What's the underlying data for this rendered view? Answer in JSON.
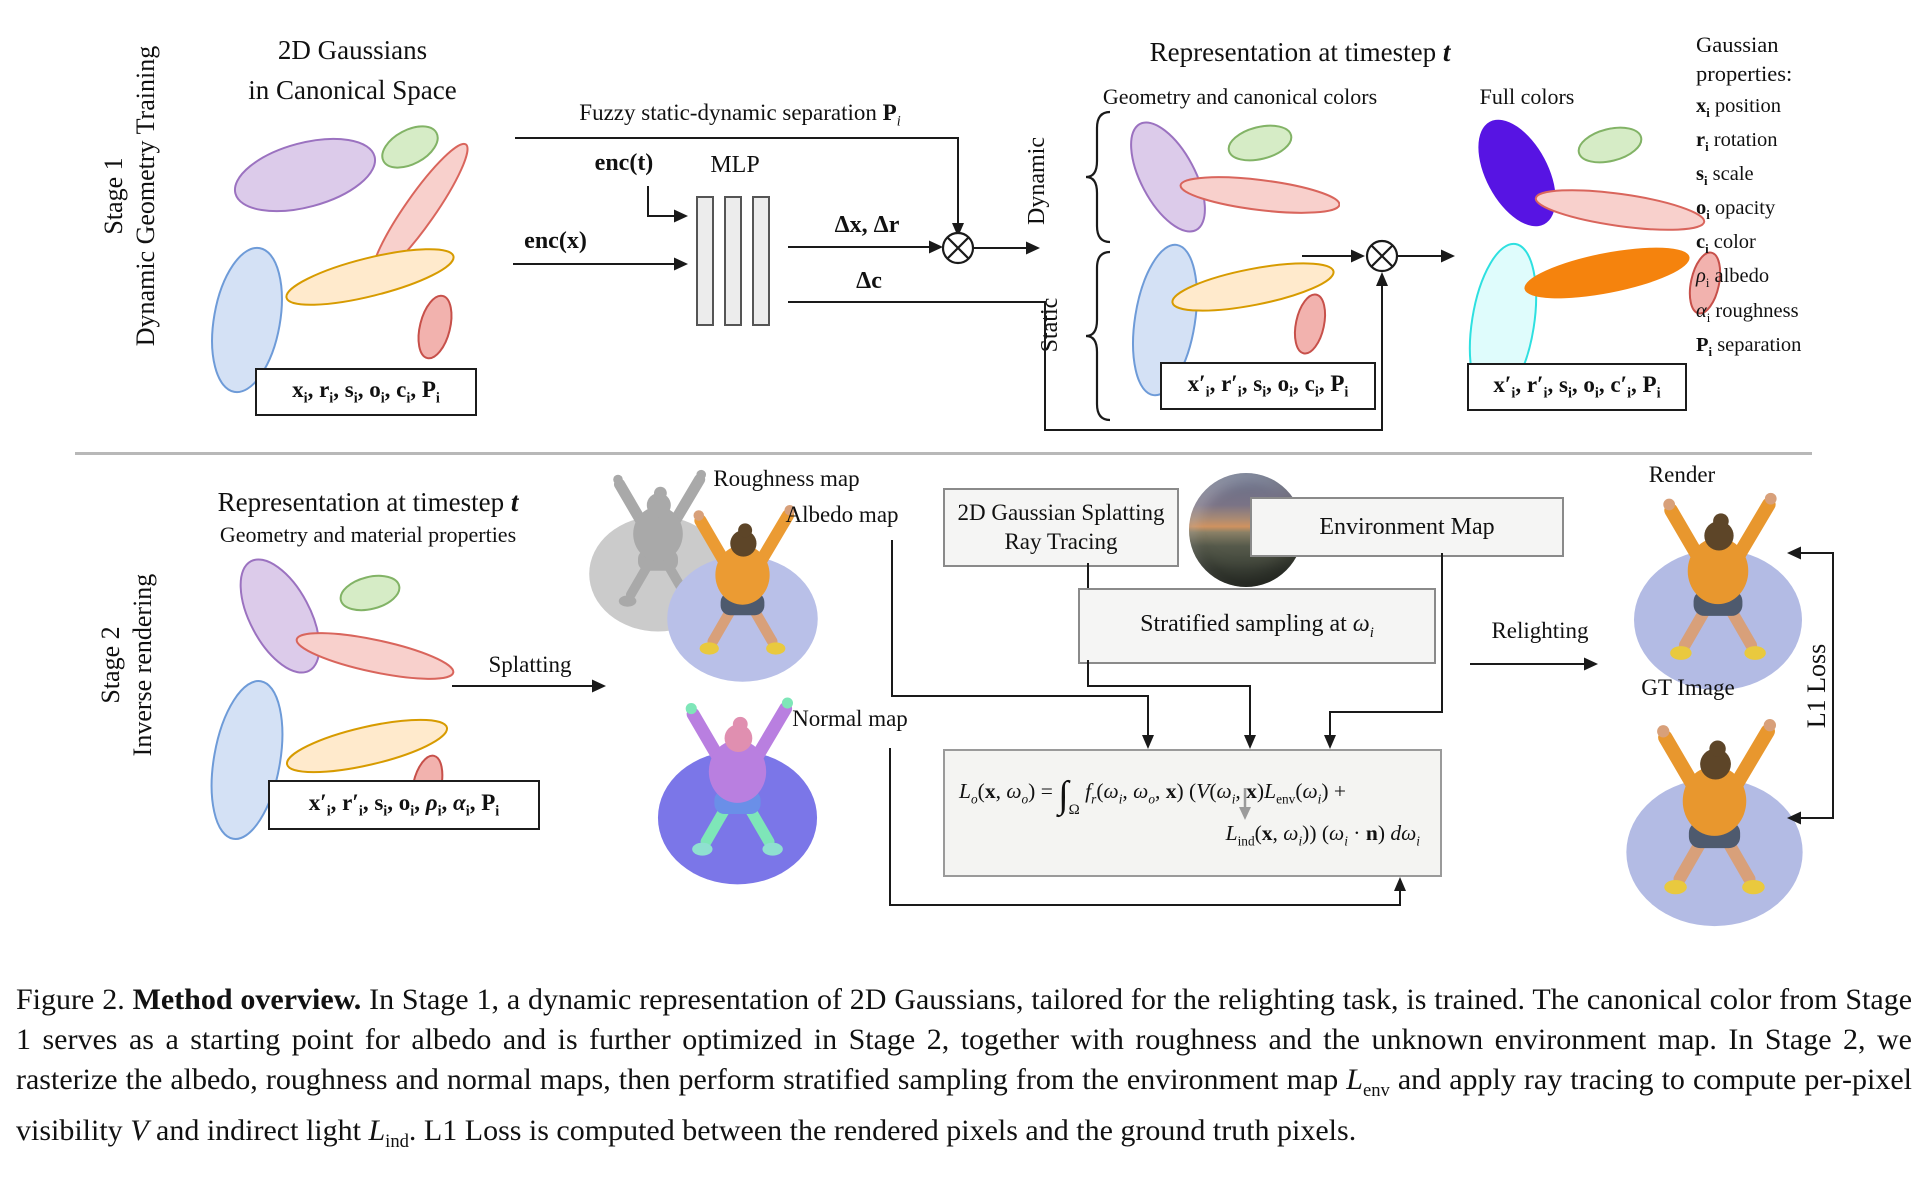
{
  "stage1": {
    "side_label_line1": "Stage 1",
    "side_label_line2": "Dynamic Geometry Training",
    "canonical_title_line1": "2D Gaussians",
    "canonical_title_line2": "in Canonical Space",
    "canonical_params_html": "<b>x<sub>i</sub>, r<sub>i</sub>, s<sub>i</sub>, o<sub>i</sub>, c<sub>i</sub>, P<sub>i</sub></b>",
    "fuzzy_label_html": "Fuzzy static-dynamic separation <b>P</b><i><sub>i</sub></i>",
    "enc_t_html": "<b>enc(t)</b>",
    "enc_x_html": "<b>enc(x)</b>",
    "mlp_label": "MLP",
    "delta_xr_html": "<b>Δx, Δr</b>",
    "delta_c_html": "<b>Δc</b>",
    "timestep_title_html": "Representation at timestep <b><i>t</i></b>",
    "geometry_colors_label": "Geometry and canonical colors",
    "full_colors_label": "Full colors",
    "dynamic_label": "Dynamic",
    "static_label": "Static",
    "static_params_html": "<b>x′<sub>i</sub>, r′<sub>i</sub>, s<sub>i</sub>, o<sub>i</sub>, c<sub>i</sub>, P<sub>i</sub></b>",
    "full_params_html": "<b>x′<sub>i</sub>, r′<sub>i</sub>, s<sub>i</sub>, o<sub>i</sub>, c′<sub>i</sub>, P<sub>i</sub></b>"
  },
  "gaussian_properties": {
    "title_line1": "Gaussian",
    "title_line2": "properties:",
    "items_html": [
      "<b>x<sub>i</sub></b> position",
      "<b>r<sub>i</sub></b> rotation",
      "<b>s<sub>i</sub></b> scale",
      "<b>o<sub>i</sub></b> opacity",
      "<b>c<sub>i</sub></b> color",
      "<i>ρ</i><sub>i</sub> albedo",
      "<i>α</i><sub>i</sub> roughness",
      "<b>P<sub>i</sub></b> separation"
    ]
  },
  "stage2": {
    "side_label_line1": "Stage 2",
    "side_label_line2": "Inverse rendering",
    "timestep_title_html": "Representation at timestep <b><i>t</i></b>",
    "material_label": "Geometry and material properties",
    "params_html": "<b>x′<sub>i</sub>, r′<sub>i</sub>, s<sub>i</sub>, o<sub>i</sub>, <i>ρ</i><sub>i</sub>, <i>α</i><sub>i</sub>, P<sub>i</sub></b>",
    "splatting_label": "Splatting",
    "roughness_label": "Roughness map",
    "albedo_label": "Albedo map",
    "normal_label": "Normal map",
    "raytracing_box_line1": "2D Gaussian Splatting",
    "raytracing_box_line2": "Ray Tracing",
    "envmap_box_label": "Environment Map",
    "stratified_box_html": "Stratified sampling at <i>ω<sub>i</sub></i>",
    "relighting_label": "Relighting",
    "render_label": "Render",
    "gt_label": "GT Image",
    "l1_label": "L1 Loss",
    "equation_line1_html": "<i>L<sub>o</sub></i>(<b>x</b>, <i>ω<sub>o</sub></i>) = <span style='font-size:38px;font-style:italic;vertical-align:-9px'>∫</span><sub style='font-size:15px;vertical-align:-16px'>Ω</sub> <i>f<sub>r</sub></i>(<i>ω<sub>i</sub></i>, <i>ω<sub>o</sub></i>, <b>x</b>) (<i>V</i>(<i>ω<sub>i</sub></i>, <b>x</b>)<i>L</i><sub>env</sub>(<i>ω<sub>i</sub></i>) +",
    "equation_line2_html": "<i>L</i><sub>ind</sub>(<b>x</b>, <i>ω<sub>i</sub></i>)) (<i>ω<sub>i</sub></i> · <b>n</b>) <i>dω<sub>i</sub></i>"
  },
  "caption": {
    "html": "Figure 2.  <b>Method overview.</b>  In Stage 1, a dynamic representation of 2D Gaussians, tailored for the relighting task, is trained.  The canonical color from Stage 1 serves as a starting point for albedo and is further optimized in Stage 2, together with roughness and the unknown environment map.  In Stage 2, we rasterize the albedo, roughness and normal maps, then perform stratified sampling from the environment map <i>L</i><sub>env</sub> and apply ray tracing to compute per-pixel visibility <i>V</i> and indirect light <i>L</i><sub>ind</sub>.  L1 Loss is computed between the rendered pixels and the ground truth pixels."
  },
  "colors": {
    "gaussian_purple": "#dccbea",
    "gaussian_green": "#d6ecc6",
    "gaussian_pink": "#f8d0cc",
    "gaussian_blue": "#d4e1f5",
    "gaussian_orange_pastel": "#ffeacc",
    "full_violet": "#5714e3",
    "full_cyan": "#dffcfc",
    "full_orange": "#f5830d",
    "box_gray_fill": "#f5f5f4",
    "arrow_black": "#1a1a1a"
  },
  "person_palettes": {
    "albedo": {
      "ball": "#b9c0e8",
      "top": "#eb9b33",
      "skin": "#d8a07a",
      "hair": "#5d4528",
      "shorts": "#4e5a6e",
      "shoes": "#e9c93e"
    },
    "roughness": {
      "ball": "#cbcbcb",
      "top": "#a9a9a9",
      "skin": "#a9a9a9",
      "hair": "#a9a9a9",
      "shorts": "#a9a9a9",
      "shoes": "#a9a9a9"
    },
    "normal": {
      "ball": "#7b76e8",
      "top": "#b97fe0",
      "skin": "#7ee6b8",
      "hair": "#e08fb0",
      "shorts": "#6a8fe8",
      "shoes": "#8fe0d0"
    },
    "render": {
      "ball": "#b3bbe4",
      "top": "#e8972e",
      "skin": "#d8a07a",
      "hair": "#5d4528",
      "shorts": "#4e5a6e",
      "shoes": "#e9c93e"
    },
    "gt": {
      "ball": "#b3bbe4",
      "top": "#e8972e",
      "skin": "#d8a07a",
      "hair": "#5d4528",
      "shorts": "#4e5a6e",
      "shoes": "#e9c93e"
    }
  }
}
